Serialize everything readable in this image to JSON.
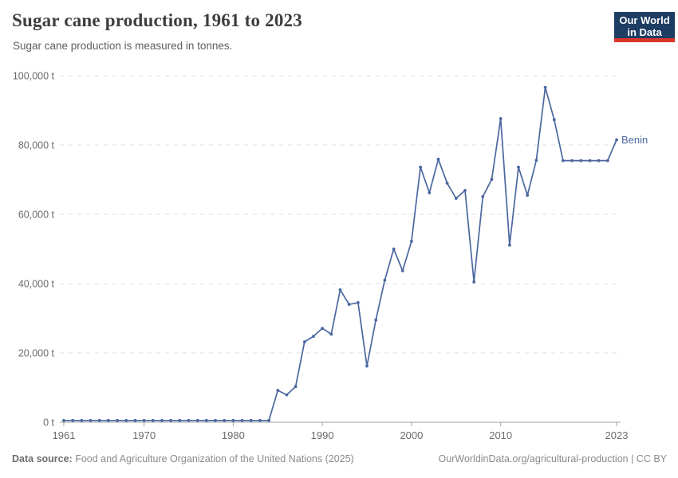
{
  "header": {
    "title": "Sugar cane production, 1961 to 2023",
    "subtitle": "Sugar cane production is measured in tonnes.",
    "logo": {
      "line1": "Our World",
      "line2": "in Data"
    }
  },
  "footer": {
    "source_label": "Data source:",
    "source_text": " Food and Agriculture Organization of the United Nations (2025)",
    "link_text": "OurWorldinData.org/agricultural-production | CC BY"
  },
  "colors": {
    "line": "#4a679f",
    "entity_label": "#4a679f",
    "grid": "#dedede",
    "axis": "#a1a1a1",
    "tick_text": "#6b6b6b",
    "logo_bg": "#1d3d63",
    "logo_accent": "#dc352d"
  },
  "chart_data": {
    "type": "line",
    "title": "Sugar cane production, 1961 to 2023",
    "unit": "tonnes",
    "grid": "dashed-horizontal",
    "legend": "entity-label-at-line-end",
    "x_range": [
      1961,
      2023
    ],
    "y_range": [
      0,
      100000
    ],
    "x_ticks": [
      {
        "value": 1961,
        "label": "1961"
      },
      {
        "value": 1970,
        "label": "1970"
      },
      {
        "value": 1980,
        "label": "1980"
      },
      {
        "value": 1990,
        "label": "1990"
      },
      {
        "value": 2000,
        "label": "2000"
      },
      {
        "value": 2010,
        "label": "2010"
      },
      {
        "value": 2023,
        "label": "2023"
      }
    ],
    "y_ticks": [
      {
        "value": 0,
        "label": "0 t"
      },
      {
        "value": 20000,
        "label": "20,000 t"
      },
      {
        "value": 40000,
        "label": "40,000 t"
      },
      {
        "value": 60000,
        "label": "60,000 t"
      },
      {
        "value": 80000,
        "label": "80,000 t"
      },
      {
        "value": 100000,
        "label": "100,000 t"
      }
    ],
    "series": [
      {
        "name": "Benin",
        "x": [
          1961,
          1962,
          1963,
          1964,
          1965,
          1966,
          1967,
          1968,
          1969,
          1970,
          1971,
          1972,
          1973,
          1974,
          1975,
          1976,
          1977,
          1978,
          1979,
          1980,
          1981,
          1982,
          1983,
          1984,
          1985,
          1986,
          1987,
          1988,
          1989,
          1990,
          1991,
          1992,
          1993,
          1994,
          1995,
          1996,
          1997,
          1998,
          1999,
          2000,
          2001,
          2002,
          2003,
          2004,
          2005,
          2006,
          2007,
          2008,
          2009,
          2010,
          2011,
          2012,
          2013,
          2014,
          2015,
          2016,
          2017,
          2018,
          2019,
          2020,
          2021,
          2022,
          2023
        ],
        "values": [
          500,
          500,
          500,
          500,
          500,
          500,
          500,
          500,
          500,
          500,
          500,
          500,
          500,
          500,
          500,
          500,
          500,
          500,
          500,
          500,
          500,
          500,
          500,
          500,
          9200,
          7900,
          10300,
          23200,
          24800,
          27100,
          25400,
          38200,
          34000,
          34500,
          16200,
          29500,
          41000,
          50000,
          43700,
          52200,
          73600,
          66200,
          75900,
          69000,
          64600,
          66900,
          40500,
          65100,
          70100,
          87600,
          51100,
          73600,
          65500,
          75600,
          96600,
          87300,
          75500,
          75500,
          75500,
          75500,
          75500,
          75500,
          81500
        ]
      }
    ]
  }
}
